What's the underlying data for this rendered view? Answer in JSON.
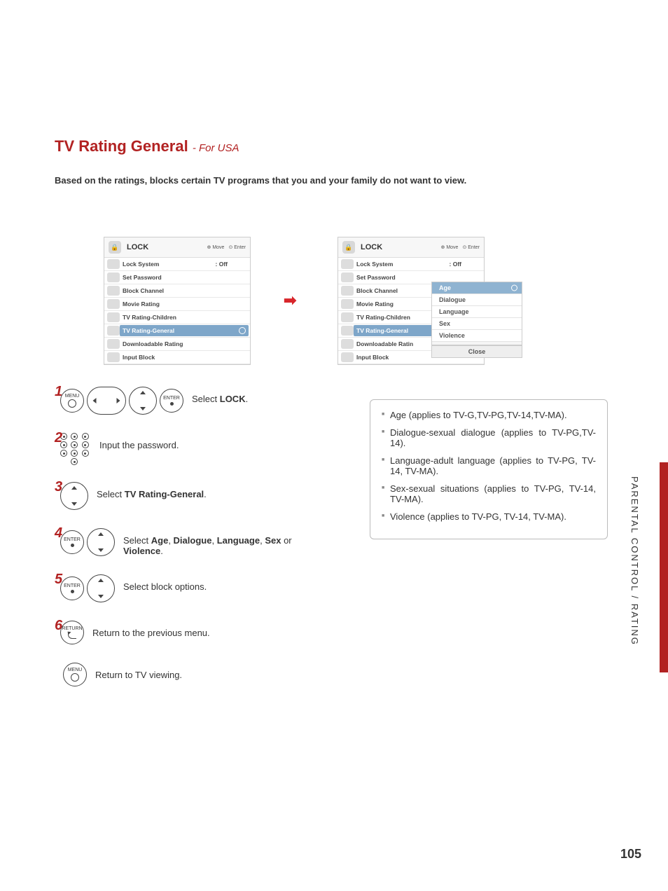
{
  "title_main": "TV Rating General",
  "title_sub": "- For USA",
  "intro": "Based on the ratings, blocks certain TV programs that you and your family do not want to view.",
  "osd": {
    "header_title": "LOCK",
    "move_hint": "Move",
    "enter_hint": "Enter",
    "items": [
      {
        "label": "Lock System",
        "value": ": Off",
        "selected": false
      },
      {
        "label": "Set Password",
        "value": "",
        "selected": false
      },
      {
        "label": "Block Channel",
        "value": "",
        "selected": false
      },
      {
        "label": "Movie Rating",
        "value": "",
        "selected": false
      },
      {
        "label": "TV Rating-Children",
        "value": "",
        "selected": false
      },
      {
        "label": "TV Rating-General",
        "value": "",
        "selected": true
      },
      {
        "label": "Downloadable Rating",
        "value": "",
        "selected": false
      },
      {
        "label": "Input Block",
        "value": "",
        "selected": false
      }
    ]
  },
  "submenu": {
    "items": [
      "Age",
      "Dialogue",
      "Language",
      "Sex",
      "Violence"
    ],
    "selected_index": 0,
    "close_label": "Close"
  },
  "steps": {
    "s1_prefix": "Select ",
    "s1_bold": "LOCK",
    "s1_suffix": ".",
    "s2": "Input the password.",
    "s3_prefix": "Select ",
    "s3_bold": "TV Rating-General",
    "s3_suffix": ".",
    "s4_prefix": "Select ",
    "s4_b1": "Age",
    "s4_c1": ", ",
    "s4_b2": "Dialogue",
    "s4_c2": ", ",
    "s4_b3": "Language",
    "s4_c3": ", ",
    "s4_b4": "Sex",
    "s4_c4": " or ",
    "s4_b5": "Violence",
    "s4_suffix": ".",
    "s5": "Select block options.",
    "s6": "Return to the previous menu.",
    "s7": "Return to TV viewing."
  },
  "buttons": {
    "menu": "MENU",
    "enter": "ENTER",
    "return": "RETURN"
  },
  "info_items": [
    "Age (applies to TV-G,TV-PG,TV-14,TV-MA).",
    "Dialogue-sexual dialogue (applies to TV-PG,TV-14).",
    "Language-adult language (applies to TV-PG, TV-14, TV-MA).",
    "Sex-sexual situations (applies to TV-PG, TV-14, TV-MA).",
    "Violence (applies to TV-PG, TV-14, TV-MA)."
  ],
  "side_label": "PARENTAL CONTROL / RATING",
  "page_number": "105",
  "colors": {
    "accent": "#b22222",
    "osd_highlight": "#7ea6c9",
    "submenu_highlight": "#8fb3d1"
  }
}
